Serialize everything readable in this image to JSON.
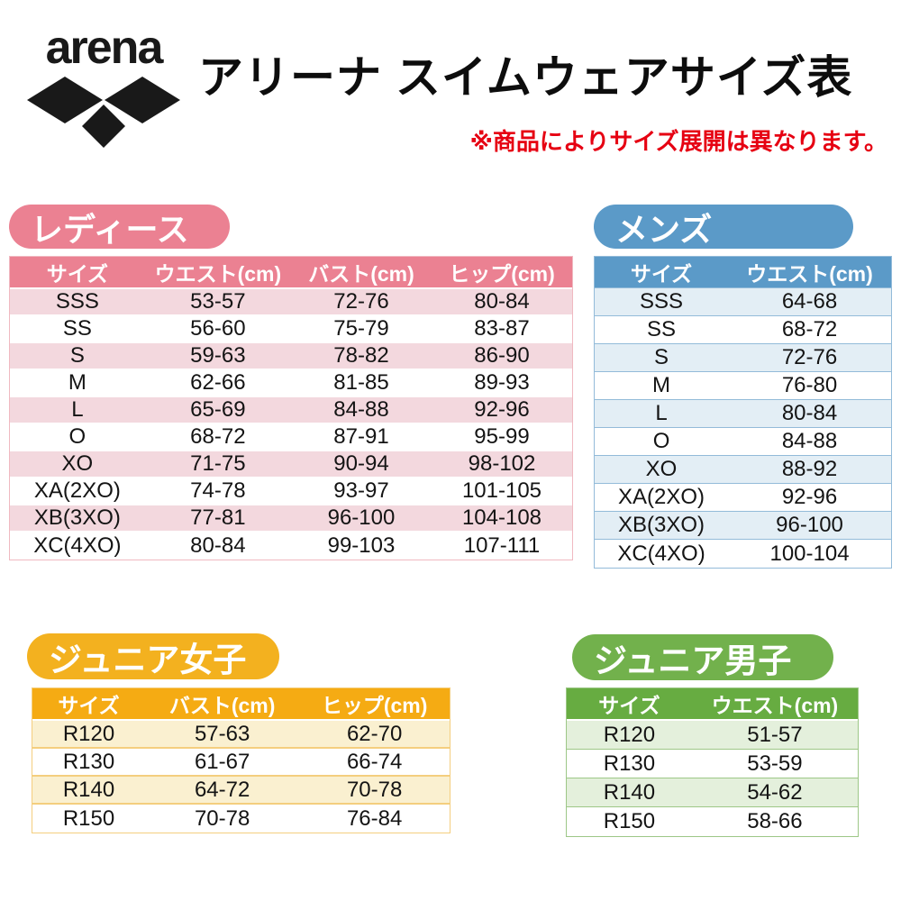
{
  "header": {
    "logo_text": "arena",
    "title": "アリーナ スイムウェアサイズ表",
    "note": "※商品によりサイズ展開は異なります。"
  },
  "colors": {
    "pink_badge": "#EB8192",
    "pink_row": "#F3D8DE",
    "pink_border": "#F0B9C1",
    "blue_badge": "#5B9AC8",
    "blue_row": "#E3EEF5",
    "blue_border": "#93BBD9",
    "yellow_badge": "#F3B11F",
    "yellow_header": "#F5AB13",
    "yellow_row": "#FAF0D0",
    "yellow_border": "#F4CE7E",
    "green_badge": "#72B14C",
    "green_header": "#67AC41",
    "green_row": "#E4F0DC",
    "green_border": "#9DC787",
    "note_red": "#E60012"
  },
  "sections": {
    "ladies": {
      "label": "レディース",
      "columns": [
        "サイズ",
        "ウエスト(cm)",
        "バスト(cm)",
        "ヒップ(cm)"
      ],
      "rows": [
        [
          "SSS",
          "53-57",
          "72-76",
          "80-84"
        ],
        [
          "SS",
          "56-60",
          "75-79",
          "83-87"
        ],
        [
          "S",
          "59-63",
          "78-82",
          "86-90"
        ],
        [
          "M",
          "62-66",
          "81-85",
          "89-93"
        ],
        [
          "L",
          "65-69",
          "84-88",
          "92-96"
        ],
        [
          "O",
          "68-72",
          "87-91",
          "95-99"
        ],
        [
          "XO",
          "71-75",
          "90-94",
          "98-102"
        ],
        [
          "XA(2XO)",
          "74-78",
          "93-97",
          "101-105"
        ],
        [
          "XB(3XO)",
          "77-81",
          "96-100",
          "104-108"
        ],
        [
          "XC(4XO)",
          "80-84",
          "99-103",
          "107-111"
        ]
      ]
    },
    "mens": {
      "label": "メンズ",
      "columns": [
        "サイズ",
        "ウエスト(cm)"
      ],
      "rows": [
        [
          "SSS",
          "64-68"
        ],
        [
          "SS",
          "68-72"
        ],
        [
          "S",
          "72-76"
        ],
        [
          "M",
          "76-80"
        ],
        [
          "L",
          "80-84"
        ],
        [
          "O",
          "84-88"
        ],
        [
          "XO",
          "88-92"
        ],
        [
          "XA(2XO)",
          "92-96"
        ],
        [
          "XB(3XO)",
          "96-100"
        ],
        [
          "XC(4XO)",
          "100-104"
        ]
      ]
    },
    "junior_girls": {
      "label": "ジュニア女子",
      "columns": [
        "サイズ",
        "バスト(cm)",
        "ヒップ(cm)"
      ],
      "rows": [
        [
          "R120",
          "57-63",
          "62-70"
        ],
        [
          "R130",
          "61-67",
          "66-74"
        ],
        [
          "R140",
          "64-72",
          "70-78"
        ],
        [
          "R150",
          "70-78",
          "76-84"
        ]
      ]
    },
    "junior_boys": {
      "label": "ジュニア男子",
      "columns": [
        "サイズ",
        "ウエスト(cm)"
      ],
      "rows": [
        [
          "R120",
          "51-57"
        ],
        [
          "R130",
          "53-59"
        ],
        [
          "R140",
          "54-62"
        ],
        [
          "R150",
          "58-66"
        ]
      ]
    }
  }
}
